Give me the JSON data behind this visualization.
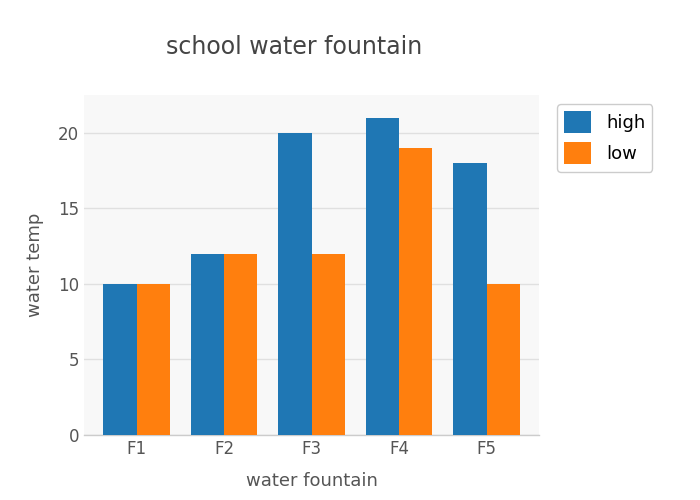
{
  "title": "school water fountain",
  "xlabel": "water fountain",
  "ylabel": "water temp",
  "categories": [
    "F1",
    "F2",
    "F3",
    "F4",
    "F5"
  ],
  "high_values": [
    10,
    12,
    20,
    21,
    18
  ],
  "low_values": [
    10,
    12,
    12,
    19,
    10
  ],
  "high_color": "#1f77b4",
  "low_color": "#ff7f0e",
  "ylim": [
    0,
    22.5
  ],
  "yticks": [
    0,
    5,
    10,
    15,
    20
  ],
  "bar_width": 0.38,
  "background_color": "#ffffff",
  "plot_bg_color": "#f8f8f8",
  "grid_color": "#e0e0e0",
  "title_fontsize": 17,
  "axis_label_fontsize": 13,
  "tick_fontsize": 12,
  "legend_labels": [
    "high",
    "low"
  ],
  "legend_fontsize": 13
}
